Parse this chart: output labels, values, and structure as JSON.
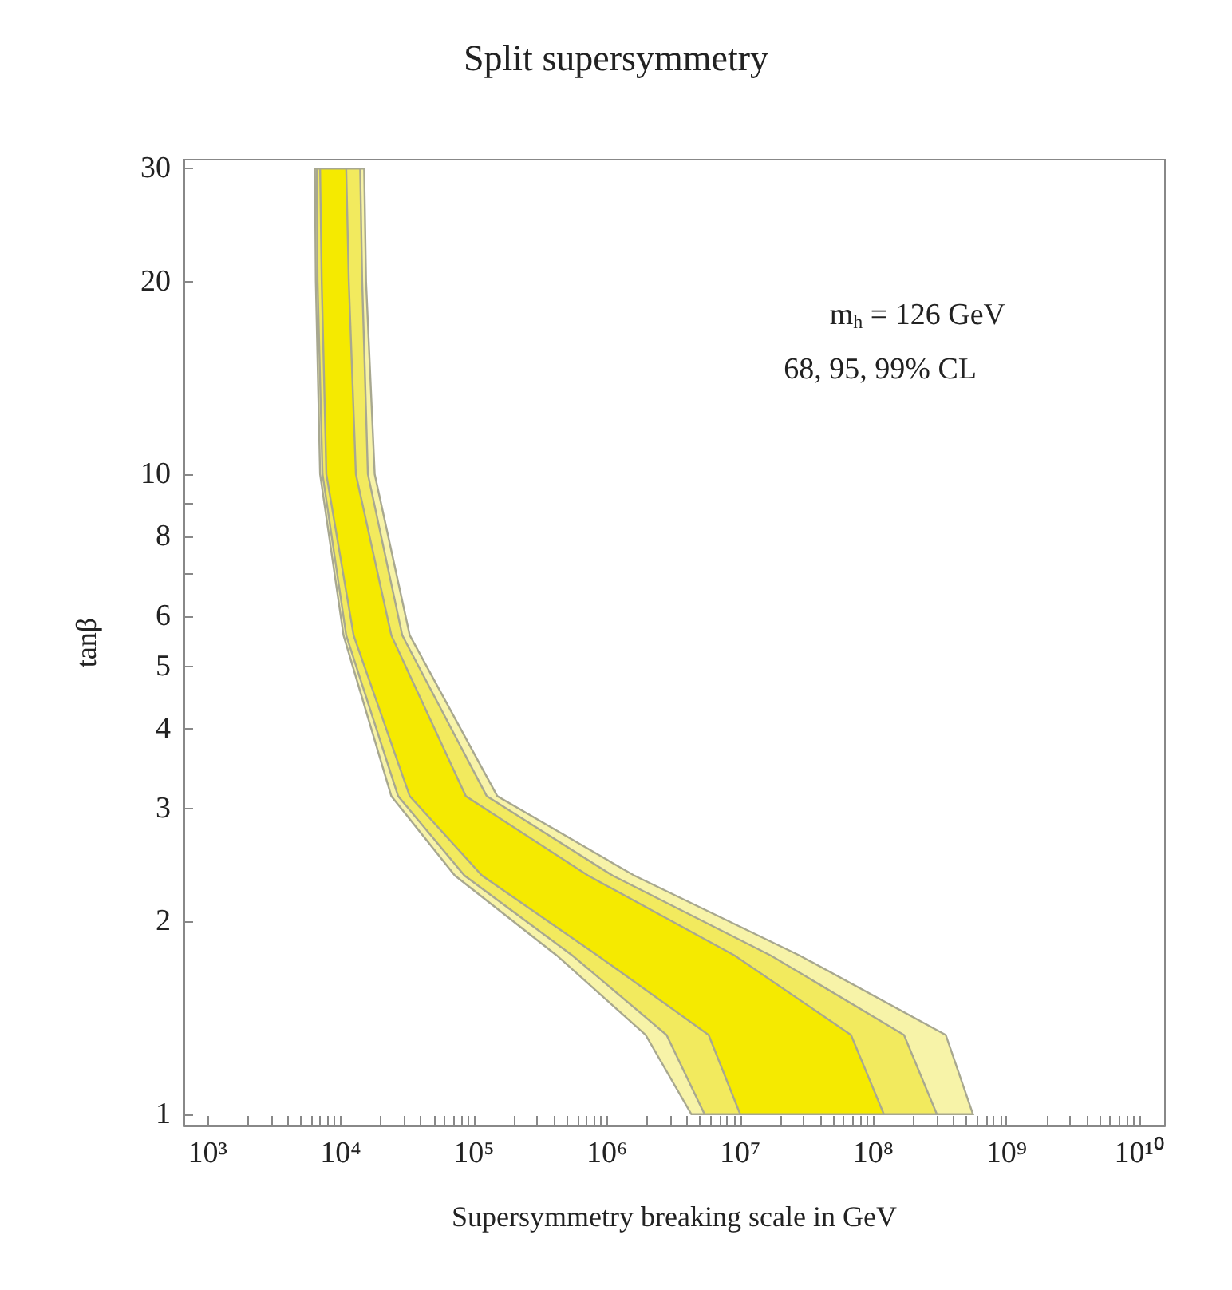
{
  "chart_data": {
    "type": "area",
    "title": "Split supersymmetry",
    "xlabel": "Supersymmetry breaking scale in GeV",
    "ylabel": "tanβ",
    "annotations": [
      "m$_{h}$ = 126 GeV",
      "68, 95, 99% CL"
    ],
    "log": "xy",
    "grid": false,
    "xlim": [
      660,
      15500000000
    ],
    "ylim": [
      0.96,
      31
    ],
    "xticks": [
      {
        "value": 1000,
        "label": "10³"
      },
      {
        "value": 2000,
        "label": null
      },
      {
        "value": 3000,
        "label": null
      },
      {
        "value": 4000,
        "label": null
      },
      {
        "value": 5000,
        "label": null
      },
      {
        "value": 6000,
        "label": null
      },
      {
        "value": 7000,
        "label": null
      },
      {
        "value": 8000,
        "label": null
      },
      {
        "value": 9000,
        "label": null
      },
      {
        "value": 10000,
        "label": "10⁴"
      },
      {
        "value": 20000,
        "label": null
      },
      {
        "value": 30000,
        "label": null
      },
      {
        "value": 40000,
        "label": null
      },
      {
        "value": 50000,
        "label": null
      },
      {
        "value": 60000,
        "label": null
      },
      {
        "value": 70000,
        "label": null
      },
      {
        "value": 80000,
        "label": null
      },
      {
        "value": 90000,
        "label": null
      },
      {
        "value": 100000,
        "label": "10⁵"
      },
      {
        "value": 200000,
        "label": null
      },
      {
        "value": 300000,
        "label": null
      },
      {
        "value": 400000,
        "label": null
      },
      {
        "value": 500000,
        "label": null
      },
      {
        "value": 600000,
        "label": null
      },
      {
        "value": 700000,
        "label": null
      },
      {
        "value": 800000,
        "label": null
      },
      {
        "value": 900000,
        "label": null
      },
      {
        "value": 1000000,
        "label": "10⁶"
      },
      {
        "value": 2000000,
        "label": null
      },
      {
        "value": 3000000,
        "label": null
      },
      {
        "value": 4000000,
        "label": null
      },
      {
        "value": 5000000,
        "label": null
      },
      {
        "value": 6000000,
        "label": null
      },
      {
        "value": 7000000,
        "label": null
      },
      {
        "value": 8000000,
        "label": null
      },
      {
        "value": 9000000,
        "label": null
      },
      {
        "value": 10000000,
        "label": "10⁷"
      },
      {
        "value": 20000000,
        "label": null
      },
      {
        "value": 30000000,
        "label": null
      },
      {
        "value": 40000000,
        "label": null
      },
      {
        "value": 50000000,
        "label": null
      },
      {
        "value": 60000000,
        "label": null
      },
      {
        "value": 70000000,
        "label": null
      },
      {
        "value": 80000000,
        "label": null
      },
      {
        "value": 90000000,
        "label": null
      },
      {
        "value": 100000000,
        "label": "10⁸"
      },
      {
        "value": 200000000,
        "label": null
      },
      {
        "value": 300000000,
        "label": null
      },
      {
        "value": 400000000,
        "label": null
      },
      {
        "value": 500000000,
        "label": null
      },
      {
        "value": 600000000,
        "label": null
      },
      {
        "value": 700000000,
        "label": null
      },
      {
        "value": 800000000,
        "label": null
      },
      {
        "value": 900000000,
        "label": null
      },
      {
        "value": 1000000000,
        "label": "10⁹"
      },
      {
        "value": 2000000000,
        "label": null
      },
      {
        "value": 3000000000,
        "label": null
      },
      {
        "value": 4000000000,
        "label": null
      },
      {
        "value": 5000000000,
        "label": null
      },
      {
        "value": 6000000000,
        "label": null
      },
      {
        "value": 7000000000,
        "label": null
      },
      {
        "value": 8000000000,
        "label": null
      },
      {
        "value": 9000000000,
        "label": null
      },
      {
        "value": 10000000000,
        "label": "10¹⁰"
      }
    ],
    "yticks": [
      1,
      2,
      3,
      4,
      5,
      6,
      {
        "value": 7,
        "label": null
      },
      8,
      {
        "value": 9,
        "label": null
      },
      10,
      20,
      30
    ],
    "series": [
      {
        "color": "#f7f3a8",
        "x": [
          6400,
          6500,
          7000,
          10500,
          24000,
          72000,
          420000,
          1950000,
          4300000,
          560000000,
          350000000,
          28000000,
          1600000,
          150000,
          33000,
          18000,
          15500,
          15000
        ],
        "values": [
          30,
          20,
          10,
          5.6,
          3.14,
          2.36,
          1.77,
          1.33,
          1,
          1,
          1.33,
          1.77,
          2.36,
          3.14,
          5.6,
          10,
          20,
          30
        ]
      },
      {
        "color": "#f2ea5e",
        "x": [
          6600,
          6700,
          7300,
          11000,
          27000,
          85000,
          550000,
          2800000,
          5400000,
          300000000,
          170000000,
          17000000,
          1100000,
          125000,
          29000,
          16000,
          14500,
          14000
        ],
        "values": [
          30,
          20,
          10,
          5.6,
          3.14,
          2.36,
          1.77,
          1.33,
          1,
          1,
          1.33,
          1.77,
          2.36,
          3.14,
          5.6,
          10,
          20,
          30
        ]
      },
      {
        "color": "#f5ea00",
        "x": [
          7000,
          7200,
          7800,
          12500,
          33000,
          115000,
          850000,
          5800000,
          10000000,
          120000000,
          68000000,
          9100000,
          720000,
          87000,
          24000,
          13000,
          11500,
          11000
        ],
        "values": [
          30,
          20,
          10,
          5.6,
          3.14,
          2.36,
          1.77,
          1.33,
          1,
          1,
          1.33,
          1.77,
          2.36,
          3.14,
          5.6,
          10,
          20,
          30
        ]
      }
    ]
  }
}
